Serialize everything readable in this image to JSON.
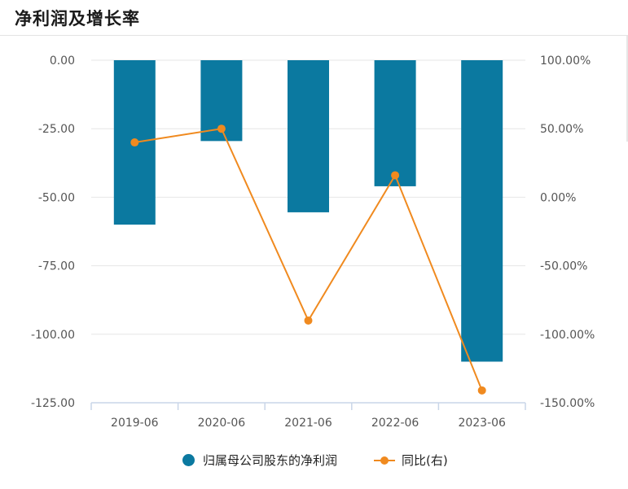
{
  "header": {
    "title": "净利润及增长率"
  },
  "colors": {
    "bar": "#0b79a0",
    "line": "#f08a1f",
    "grid": "#e6e6e6",
    "axis": "#c9d6e8"
  },
  "chart_data": {
    "type": "bar",
    "title": "净利润及增长率",
    "categories": [
      "2019-06",
      "2020-06",
      "2021-06",
      "2022-06",
      "2023-06"
    ],
    "series": [
      {
        "name": "归属母公司股东的净利润",
        "type": "bar",
        "axis": "left",
        "values": [
          -60.0,
          -29.5,
          -55.5,
          -46.0,
          -110.0
        ]
      },
      {
        "name": "同比(右)",
        "type": "line",
        "axis": "right",
        "values": [
          40.0,
          50.0,
          -90.0,
          16.0,
          -141.0
        ]
      }
    ],
    "y_left": {
      "min": -125,
      "max": 0,
      "ticks": [
        0,
        -25,
        -50,
        -75,
        -100,
        -125
      ],
      "tick_labels": [
        "0.00",
        "-25.00",
        "-50.00",
        "-75.00",
        "-100.00",
        "-125.00"
      ]
    },
    "y_right": {
      "min": -150,
      "max": 100,
      "ticks": [
        100,
        50,
        0,
        -50,
        -100,
        -150
      ],
      "tick_labels": [
        "100.00%",
        "50.00%",
        "0.00%",
        "-50.00%",
        "-100.00%",
        "-150.00%"
      ]
    },
    "grid": true,
    "legend": [
      "归属母公司股东的净利润",
      "同比(右)"
    ],
    "legend_position": "bottom"
  }
}
